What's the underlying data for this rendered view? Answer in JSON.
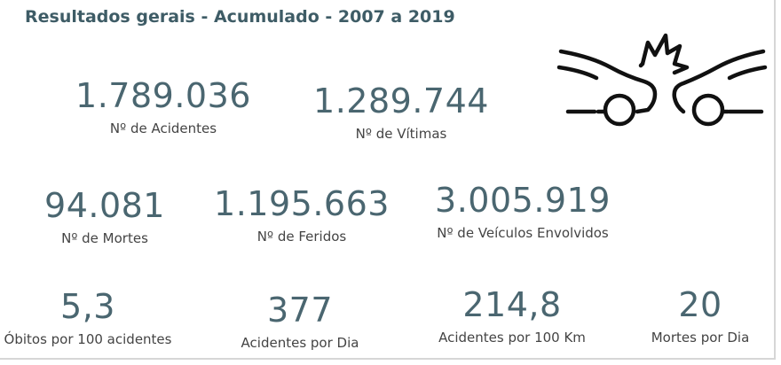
{
  "header": {
    "title": "Resultados gerais - Acumulado - 2007 a 2019"
  },
  "kpis": {
    "acidentes": {
      "value": "1.789.036",
      "label": "Nº de Acidentes"
    },
    "vitimas": {
      "value": "1.289.744",
      "label": "Nº de Vítimas"
    },
    "mortes": {
      "value": "94.081",
      "label": "Nº de Mortes"
    },
    "feridos": {
      "value": "1.195.663",
      "label": "Nº de Feridos"
    },
    "veiculos": {
      "value": "3.005.919",
      "label": "Nº de Veículos Envolvidos"
    },
    "obitos100": {
      "value": "5,3",
      "label": "Óbitos por 100 acidentes"
    },
    "acidDia": {
      "value": "377",
      "label": "Acidentes por Dia"
    },
    "acid100km": {
      "value": "214,8",
      "label": "Acidentes por 100 Km"
    },
    "mortesDia": {
      "value": "20",
      "label": "Mortes por Dia"
    }
  },
  "icon": {
    "name": "car-crash-icon"
  },
  "colors": {
    "title": "#3e5c66",
    "value": "#4a6670",
    "label": "#444444"
  }
}
